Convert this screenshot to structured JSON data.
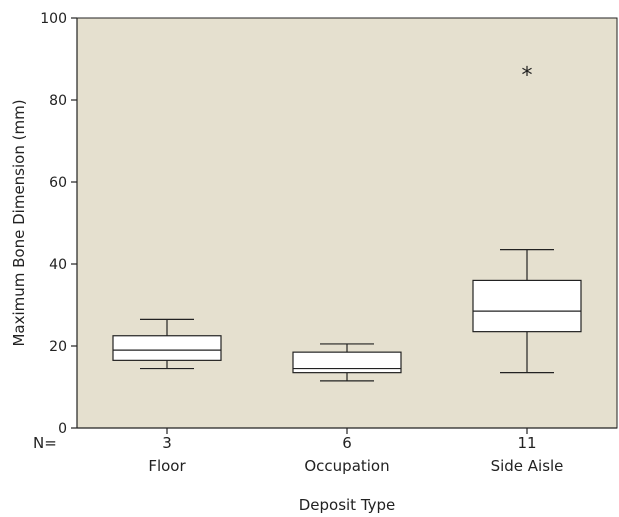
{
  "chart_data": {
    "type": "boxplot",
    "xlabel": "Deposit Type",
    "ylabel": "Maximum Bone Dimension (mm)",
    "ylim": [
      0,
      100
    ],
    "yticks": [
      0,
      20,
      40,
      60,
      80,
      100
    ],
    "n_label": "N=",
    "grid": false,
    "plot_background": "#e5e0cf",
    "outlier_marker": "*",
    "categories": [
      {
        "name": "Floor",
        "n": "3",
        "whisker_low": 14.5,
        "q1": 16.5,
        "median": 19,
        "q3": 22.5,
        "whisker_high": 26.5,
        "outliers": []
      },
      {
        "name": "Occupation",
        "n": "6",
        "whisker_low": 11.5,
        "q1": 13.5,
        "median": 14.5,
        "q3": 18.5,
        "whisker_high": 20.5,
        "outliers": []
      },
      {
        "name": "Side Aisle",
        "n": "11",
        "whisker_low": 13.5,
        "q1": 23.5,
        "median": 28.5,
        "q3": 36,
        "whisker_high": 43.5,
        "outliers": [
          86.5
        ]
      }
    ]
  }
}
